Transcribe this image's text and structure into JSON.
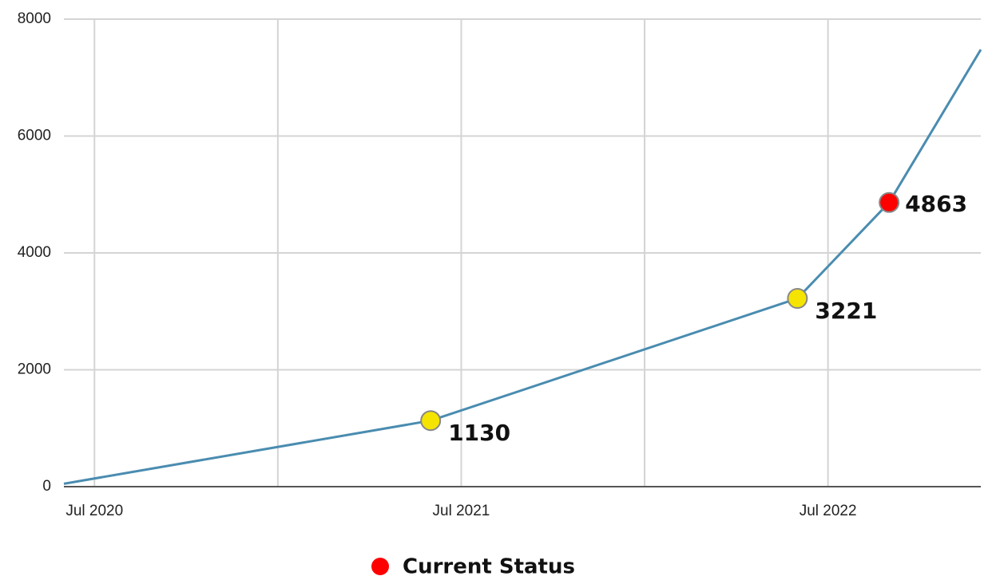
{
  "chart_data": {
    "type": "line",
    "x": [
      "2020-06",
      "2021-06",
      "2022-06",
      "2022-09",
      "2022-12"
    ],
    "series": [
      {
        "color": "#4a8cb0",
        "values": [
          50,
          1130,
          3221,
          4863,
          7480
        ]
      }
    ],
    "points": [
      {
        "x": "2021-06",
        "value": 1130,
        "color": "#f5e400"
      },
      {
        "x": "2022-06",
        "value": 3221,
        "color": "#f5e400"
      },
      {
        "x": "2022-09",
        "value": 4863,
        "color": "#ff0000"
      }
    ],
    "legend": {
      "label": "Current Status",
      "color": "#ff0000"
    },
    "xlim": [
      "2020-06",
      "2022-12"
    ],
    "xticks": [
      {
        "value": "2020-07",
        "label": "Jul 2020"
      },
      {
        "value": "2021-01",
        "label": null
      },
      {
        "value": "2021-07",
        "label": "Jul 2021"
      },
      {
        "value": "2022-01",
        "label": null
      },
      {
        "value": "2022-07",
        "label": "Jul 2022"
      }
    ],
    "ylim": [
      0,
      8000
    ],
    "yticks": [
      0,
      2000,
      4000,
      6000,
      8000
    ],
    "grid": true
  }
}
